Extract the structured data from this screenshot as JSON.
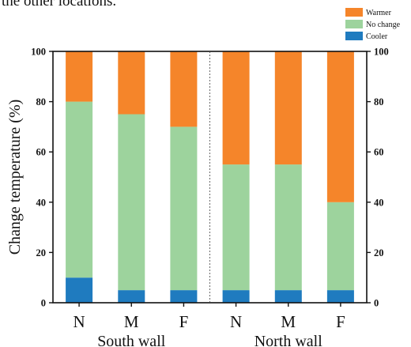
{
  "header_text": "the other locations.",
  "chart_data": {
    "type": "bar",
    "stacked": true,
    "ylabel": "Change temperature (%)",
    "ylim": [
      0,
      100
    ],
    "yticks": [
      0,
      20,
      40,
      60,
      80,
      100
    ],
    "legend_placement": "top-right",
    "categories": [
      "N",
      "M",
      "F",
      "N",
      "M",
      "F"
    ],
    "groups": [
      {
        "label": "South wall",
        "categories": [
          "N",
          "M",
          "F"
        ]
      },
      {
        "label": "North wall",
        "categories": [
          "N",
          "M",
          "F"
        ]
      }
    ],
    "series": [
      {
        "name": "Cooler",
        "color": "#1f7bbf",
        "values": [
          10,
          5,
          5,
          5,
          5,
          5
        ]
      },
      {
        "name": "No change",
        "color": "#9dd39d",
        "values": [
          70,
          70,
          65,
          50,
          50,
          35
        ]
      },
      {
        "name": "Warmer",
        "color": "#f5852a",
        "values": [
          20,
          25,
          30,
          45,
          45,
          60
        ]
      }
    ],
    "legend_order": [
      "Warmer",
      "No change",
      "Cooler"
    ]
  }
}
